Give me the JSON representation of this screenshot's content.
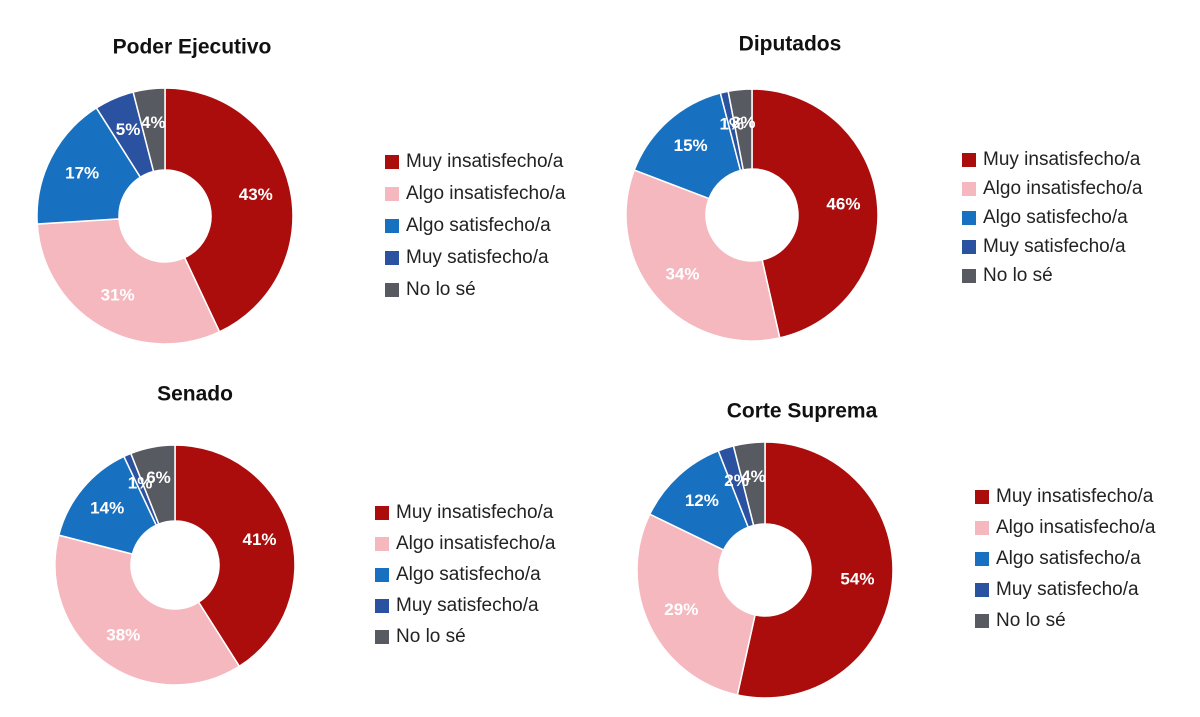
{
  "chart_data": [
    {
      "type": "pie",
      "title": "Poder Ejecutivo",
      "categories": [
        "Muy insatisfecho/a",
        "Algo insatisfecho/a",
        "Algo satisfecho/a",
        "Muy satisfecho/a",
        "No lo sé"
      ],
      "values": [
        43,
        31,
        17,
        5,
        4
      ],
      "value_labels": [
        "43%",
        "31%",
        "17%",
        "5%",
        "4%"
      ],
      "colors": [
        "#ab0d0d",
        "#f6b8bf",
        "#1770c0",
        "#2b52a0",
        "#575a60"
      ]
    },
    {
      "type": "pie",
      "title": "Diputados",
      "categories": [
        "Muy insatisfecho/a",
        "Algo insatisfecho/a",
        "Algo satisfecho/a",
        "Muy satisfecho/a",
        "No lo sé"
      ],
      "values": [
        46,
        34,
        15,
        1,
        3
      ],
      "value_labels": [
        "46%",
        "34%",
        "15%",
        "1%",
        "3%"
      ],
      "colors": [
        "#ab0d0d",
        "#f6b8bf",
        "#1770c0",
        "#2b52a0",
        "#575a60"
      ]
    },
    {
      "type": "pie",
      "title": "Senado",
      "categories": [
        "Muy insatisfecho/a",
        "Algo insatisfecho/a",
        "Algo satisfecho/a",
        "Muy satisfecho/a",
        "No lo sé"
      ],
      "values": [
        41,
        38,
        14,
        1,
        6
      ],
      "value_labels": [
        "41%",
        "38%",
        "14%",
        "1%",
        "6%"
      ],
      "colors": [
        "#ab0d0d",
        "#f6b8bf",
        "#1770c0",
        "#2b52a0",
        "#575a60"
      ]
    },
    {
      "type": "pie",
      "title": "Corte Suprema",
      "categories": [
        "Muy insatisfecho/a",
        "Algo insatisfecho/a",
        "Algo satisfecho/a",
        "Muy satisfecho/a",
        "No lo sé"
      ],
      "values": [
        54,
        29,
        12,
        2,
        4
      ],
      "value_labels": [
        "54%",
        "29%",
        "12%",
        "2%",
        "4%"
      ],
      "colors": [
        "#ab0d0d",
        "#f6b8bf",
        "#1770c0",
        "#2b52a0",
        "#575a60"
      ]
    }
  ]
}
